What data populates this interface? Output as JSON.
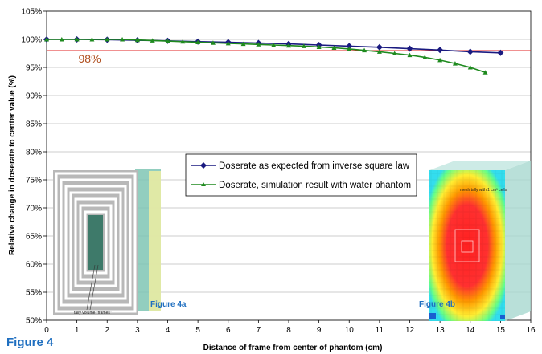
{
  "figure_title": "Figure 4",
  "chart_data": {
    "type": "line",
    "title": "",
    "xlabel": "Distance of frame from center of phantom (cm)",
    "ylabel": "Relative change in doserate to center value (%)",
    "xlim": [
      0,
      16
    ],
    "ylim": [
      50,
      105
    ],
    "x_ticks": [
      0,
      1,
      2,
      3,
      4,
      5,
      6,
      7,
      8,
      9,
      10,
      11,
      12,
      13,
      14,
      15,
      16
    ],
    "y_ticks": [
      {
        "v": 50,
        "label": "50%"
      },
      {
        "v": 55,
        "label": "55%"
      },
      {
        "v": 60,
        "label": "60%"
      },
      {
        "v": 65,
        "label": "65%"
      },
      {
        "v": 70,
        "label": "70%"
      },
      {
        "v": 75,
        "label": "75%"
      },
      {
        "v": 80,
        "label": "80%"
      },
      {
        "v": 85,
        "label": "85%"
      },
      {
        "v": 90,
        "label": "90%"
      },
      {
        "v": 95,
        "label": "95%"
      },
      {
        "v": 100,
        "label": "100%"
      },
      {
        "v": 105,
        "label": "105%"
      }
    ],
    "grid": true,
    "legend_position": "center",
    "series": [
      {
        "name": "Doserate as expected from inverse square law",
        "color": "#1a1a80",
        "marker": "diamond",
        "x": [
          0,
          1,
          2,
          3,
          4,
          5,
          6,
          7,
          8,
          9,
          10,
          11,
          12,
          13,
          14,
          15
        ],
        "y": [
          100,
          100,
          99.95,
          99.85,
          99.75,
          99.6,
          99.5,
          99.35,
          99.2,
          99.0,
          98.8,
          98.6,
          98.35,
          98.1,
          97.8,
          97.6
        ]
      },
      {
        "name": "Doserate, simulation result with water phantom",
        "color": "#1e8a1e",
        "marker": "triangle",
        "x": [
          0,
          0.5,
          1,
          1.5,
          2,
          2.5,
          3,
          3.5,
          4,
          4.5,
          5,
          5.5,
          6,
          6.5,
          7,
          7.5,
          8,
          8.5,
          9,
          9.5,
          10,
          10.5,
          11,
          11.5,
          12,
          12.5,
          13,
          13.5,
          14,
          14.5
        ],
        "y": [
          100,
          100,
          100,
          100,
          100,
          100,
          99.9,
          99.8,
          99.7,
          99.6,
          99.5,
          99.4,
          99.3,
          99.2,
          99.1,
          99.0,
          98.9,
          98.8,
          98.65,
          98.5,
          98.3,
          98.05,
          97.8,
          97.5,
          97.2,
          96.8,
          96.3,
          95.7,
          95.0,
          94.1
        ]
      }
    ],
    "reference_line": {
      "y": 98,
      "label": "98%",
      "color": "#e02020"
    },
    "annotations": [
      {
        "text": "Figure 4a",
        "color": "#1f6fc0"
      },
      {
        "text": "Figure 4b",
        "color": "#1f6fc0"
      }
    ]
  },
  "insets": {
    "left_label": "tally volume \"frames\"",
    "right_label": "mesh tally with 1 cm³ cells"
  }
}
